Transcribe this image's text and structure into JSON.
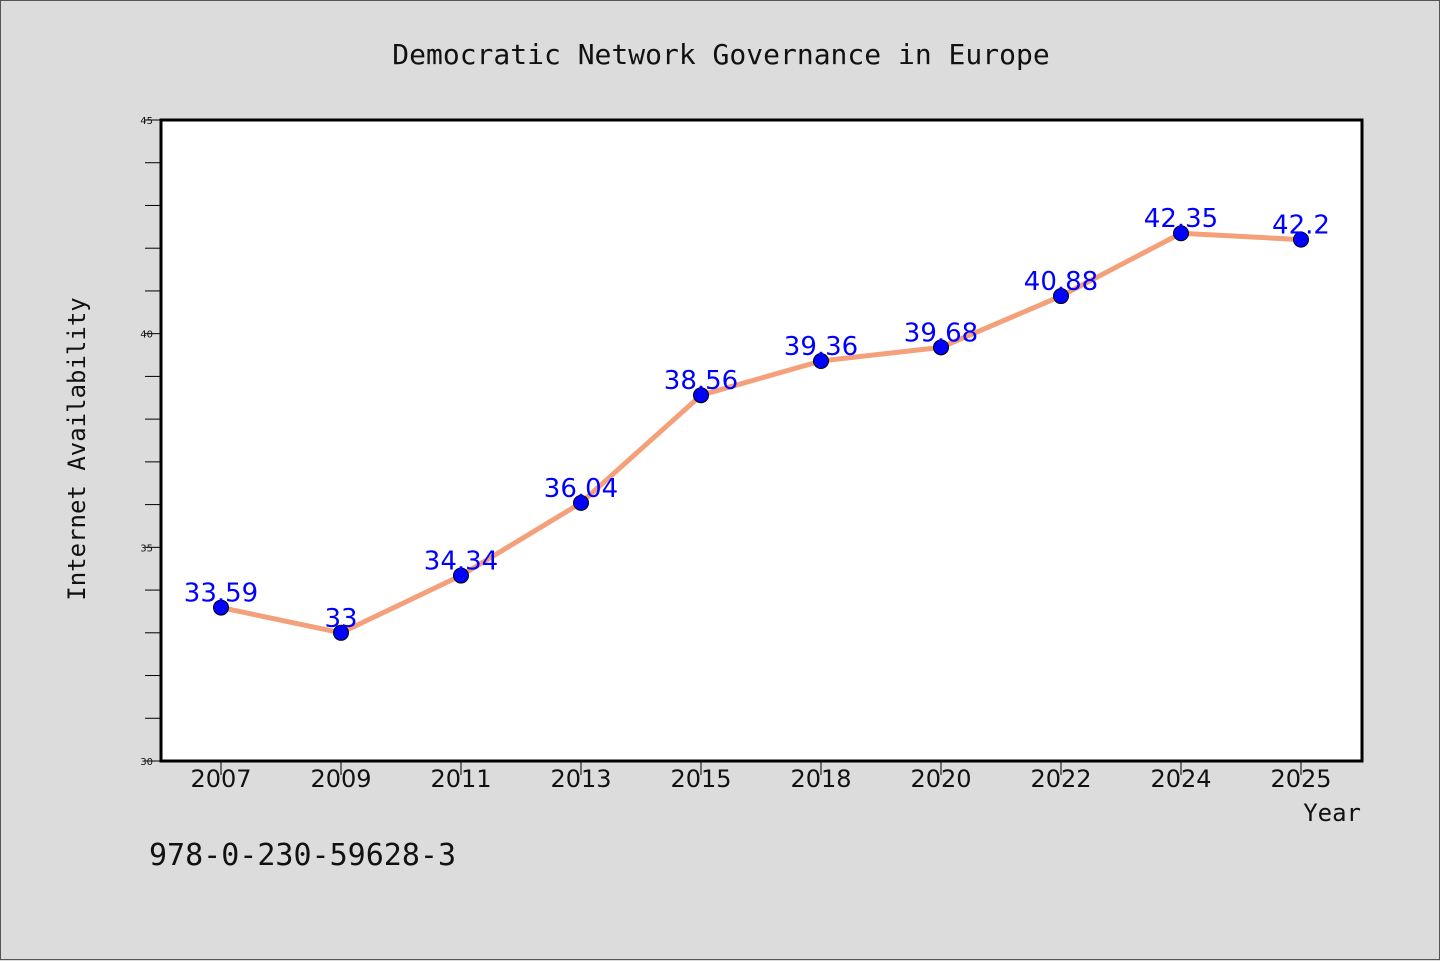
{
  "chart_data": {
    "type": "line",
    "title": "Democratic Network Governance in Europe",
    "xlabel": "Year",
    "ylabel": "Internet Availability",
    "categories": [
      "2007",
      "2009",
      "2011",
      "2013",
      "2015",
      "2018",
      "2020",
      "2022",
      "2024",
      "2025"
    ],
    "series": [
      {
        "values": [
          33.59,
          33,
          34.34,
          36.04,
          38.56,
          39.36,
          39.68,
          40.88,
          42.35,
          42.2
        ]
      }
    ],
    "data_labels": [
      "33.59",
      "33",
      "34.34",
      "36.04",
      "38.56",
      "39.36",
      "39.68",
      "40.88",
      "42.35",
      "42.2"
    ],
    "ylim": [
      30,
      45
    ],
    "yticks": [
      "30",
      "35",
      "40",
      "45"
    ],
    "grid": false,
    "colors": {
      "line": "#f4a07a",
      "marker": "#0000ff",
      "data_label": "#0000ff",
      "plot_background": "#ffffff",
      "figure_background": "#dcdcdc"
    }
  },
  "footnote": "978-0-230-59628-3"
}
